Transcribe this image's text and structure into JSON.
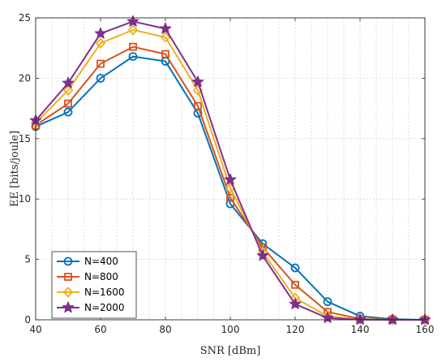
{
  "chart_data": {
    "type": "line",
    "title": "",
    "xlabel": "SNR [dBm]",
    "ylabel": "EE [bits/joule]",
    "xlim": [
      40,
      160
    ],
    "ylim": [
      0,
      25
    ],
    "xticks": [
      40,
      60,
      80,
      100,
      120,
      140,
      160
    ],
    "yticks": [
      0,
      5,
      10,
      15,
      20,
      25
    ],
    "x_minor_grid_step": 5,
    "grid": true,
    "legend_position": "bottom-left",
    "x": [
      40,
      50,
      60,
      70,
      80,
      90,
      100,
      110,
      120,
      130,
      140,
      150,
      160
    ],
    "series": [
      {
        "name": "N=400",
        "color": "#0072BD",
        "marker": "circle",
        "values": [
          16.0,
          17.2,
          20.0,
          21.8,
          21.4,
          17.1,
          9.6,
          6.3,
          4.3,
          1.5,
          0.3,
          0.05,
          0.0
        ]
      },
      {
        "name": "N=800",
        "color": "#D95319",
        "marker": "square",
        "values": [
          16.1,
          17.9,
          21.2,
          22.6,
          22.0,
          17.7,
          10.1,
          6.0,
          2.9,
          0.65,
          0.08,
          0.01,
          0.0
        ]
      },
      {
        "name": "N=1600",
        "color": "#EDB120",
        "marker": "diamond",
        "values": [
          16.3,
          19.0,
          22.9,
          24.0,
          23.4,
          19.0,
          10.9,
          5.6,
          1.8,
          0.3,
          0.03,
          0.0,
          0.0
        ]
      },
      {
        "name": "N=2000",
        "color": "#7E2F8E",
        "marker": "star",
        "values": [
          16.5,
          19.6,
          23.7,
          24.7,
          24.1,
          19.7,
          11.6,
          5.3,
          1.3,
          0.15,
          0.01,
          0.0,
          0.0
        ]
      }
    ]
  }
}
